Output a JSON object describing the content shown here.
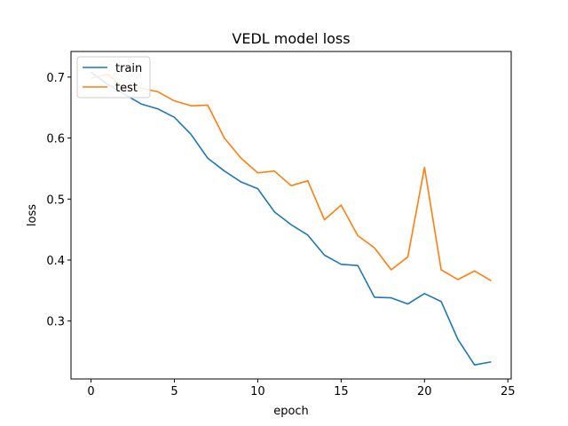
{
  "chart_data": {
    "type": "line",
    "title": "VEDL model loss",
    "xlabel": "epoch",
    "ylabel": "loss",
    "xlim": [
      -1.2,
      25.2
    ],
    "ylim": [
      0.205,
      0.742
    ],
    "xticks": [
      0,
      5,
      10,
      15,
      20,
      25
    ],
    "yticks": [
      0.3,
      0.4,
      0.5,
      0.6,
      0.7
    ],
    "x": [
      0,
      1,
      2,
      3,
      4,
      5,
      6,
      7,
      8,
      9,
      10,
      11,
      12,
      13,
      14,
      15,
      16,
      17,
      18,
      19,
      20,
      21,
      22,
      23,
      24
    ],
    "series": [
      {
        "name": "train",
        "color": "#1f77b4",
        "values": [
          0.708,
          0.688,
          0.672,
          0.656,
          0.648,
          0.634,
          0.606,
          0.567,
          0.546,
          0.528,
          0.517,
          0.479,
          0.458,
          0.441,
          0.408,
          0.393,
          0.391,
          0.339,
          0.338,
          0.328,
          0.345,
          0.332,
          0.27,
          0.228,
          0.233
        ]
      },
      {
        "name": "test",
        "color": "#ff7f0e",
        "values": [
          0.698,
          0.705,
          0.681,
          0.682,
          0.676,
          0.661,
          0.653,
          0.654,
          0.6,
          0.567,
          0.543,
          0.546,
          0.522,
          0.53,
          0.466,
          0.49,
          0.44,
          0.42,
          0.384,
          0.405,
          0.552,
          0.384,
          0.368,
          0.382,
          0.366
        ]
      }
    ],
    "legend": {
      "position": "top-left"
    },
    "grid": false
  }
}
